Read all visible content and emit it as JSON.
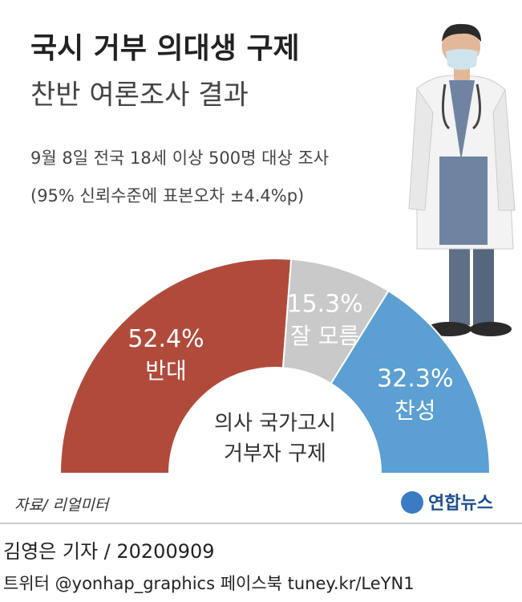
{
  "chart_data": {
    "type": "semi-donut",
    "title": "국시 거부 의대생 구제",
    "subtitle": "찬반 여론조사 결과",
    "notes": [
      "9월 8일 전국 18세 이상 500명 대상 조사",
      "(95% 신뢰수준에 표본오차 ±4.4%p)"
    ],
    "categories": [
      "반대",
      "잘 모름",
      "찬성"
    ],
    "values": [
      52.4,
      15.3,
      32.3
    ],
    "value_labels": [
      "52.4%",
      "15.3%",
      "32.3%"
    ],
    "colors": [
      "#b04b3b",
      "#c9c9c9",
      "#5c9fd2"
    ],
    "center_label": [
      "의사 국가고시",
      "거부자 구제"
    ],
    "source": "자료/ 리얼미터",
    "logo": "연합뉴스"
  },
  "footer": {
    "byline": "김영은 기자 / 20200909",
    "social": "트위터 @yonhap_graphics  페이스북 tuney.kr/LeYN1"
  }
}
